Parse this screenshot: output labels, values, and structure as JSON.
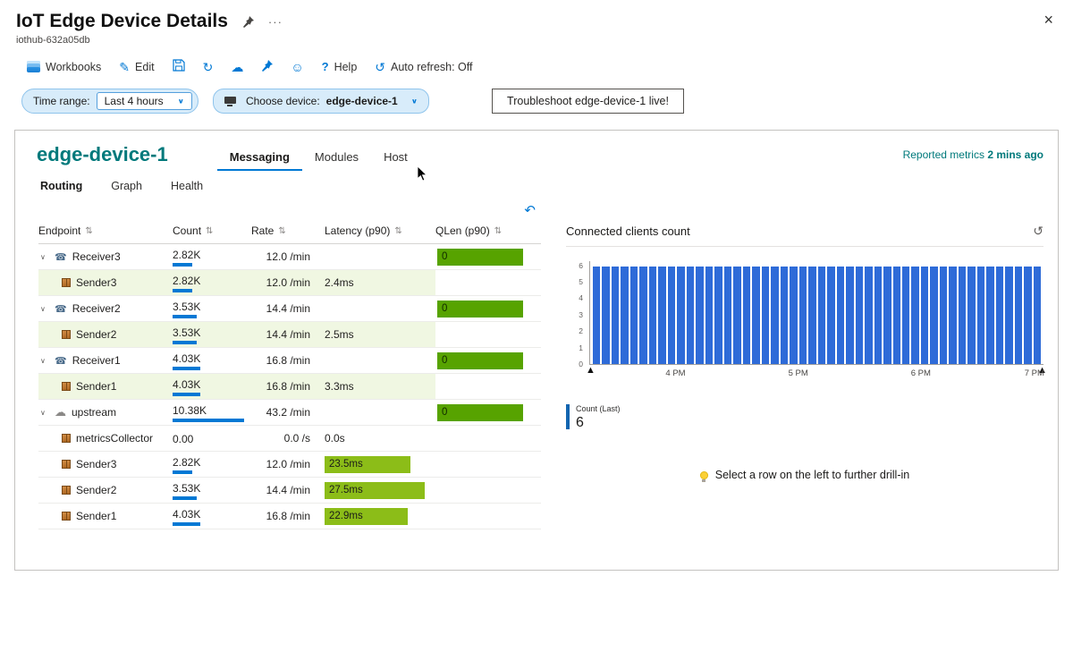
{
  "window": {
    "title": "IoT Edge Device Details",
    "subtitle": "iothub-632a05db"
  },
  "icons": {
    "close": "×",
    "more": "···",
    "sort": "⇅",
    "undo": "↶",
    "history": "↺",
    "refresh": "↻",
    "cloud_download": "☁",
    "smiley": "☺",
    "edit": "✎",
    "chevron_down": "∨",
    "expand": "∨",
    "receiver": "☎",
    "cloud": "☁",
    "brush_handle": "▲",
    "help": "?",
    "auto_refresh": "↺"
  },
  "toolbar": {
    "workbooks": "Workbooks",
    "edit": "Edit",
    "help": "Help",
    "auto_refresh": "Auto refresh: Off"
  },
  "filters": {
    "time_range_label": "Time range:",
    "time_range_value": "Last 4 hours",
    "device_label": "Choose device:",
    "device_value": "edge-device-1",
    "troubleshoot_label": "Troubleshoot edge-device-1 live!"
  },
  "device": {
    "name": "edge-device-1",
    "tabs": [
      "Messaging",
      "Modules",
      "Host"
    ],
    "active_tab": "Messaging",
    "subtabs": [
      "Routing",
      "Graph",
      "Health"
    ],
    "active_subtab": "Routing",
    "reported_label": "Reported metrics",
    "reported_value": "2 mins ago"
  },
  "table": {
    "columns": [
      "Endpoint",
      "Count",
      "Rate",
      "Latency (p90)",
      "QLen (p90)"
    ],
    "max_count": 10380,
    "max_latency_ms": 27.5,
    "rows": [
      {
        "name": "Receiver3",
        "icon": "receiver",
        "expanded": true,
        "indent": false,
        "count": "2.82K",
        "count_value": 2820,
        "rate": "12.0 /min",
        "latency": "",
        "latency_value": 0,
        "latency_bar": false,
        "qlen": "0",
        "tint": false
      },
      {
        "name": "Sender3",
        "icon": "package",
        "expanded": false,
        "indent": true,
        "count": "2.82K",
        "count_value": 2820,
        "rate": "12.0 /min",
        "latency": "2.4ms",
        "latency_value": 2.4,
        "latency_bar": false,
        "qlen": "",
        "tint": true
      },
      {
        "name": "Receiver2",
        "icon": "receiver",
        "expanded": true,
        "indent": false,
        "count": "3.53K",
        "count_value": 3530,
        "rate": "14.4 /min",
        "latency": "",
        "latency_value": 0,
        "latency_bar": false,
        "qlen": "0",
        "tint": false
      },
      {
        "name": "Sender2",
        "icon": "package",
        "expanded": false,
        "indent": true,
        "count": "3.53K",
        "count_value": 3530,
        "rate": "14.4 /min",
        "latency": "2.5ms",
        "latency_value": 2.5,
        "latency_bar": false,
        "qlen": "",
        "tint": true
      },
      {
        "name": "Receiver1",
        "icon": "receiver",
        "expanded": true,
        "indent": false,
        "count": "4.03K",
        "count_value": 4030,
        "rate": "16.8 /min",
        "latency": "",
        "latency_value": 0,
        "latency_bar": false,
        "qlen": "0",
        "tint": false
      },
      {
        "name": "Sender1",
        "icon": "package",
        "expanded": false,
        "indent": true,
        "count": "4.03K",
        "count_value": 4030,
        "rate": "16.8 /min",
        "latency": "3.3ms",
        "latency_value": 3.3,
        "latency_bar": false,
        "qlen": "",
        "tint": true
      },
      {
        "name": "upstream",
        "icon": "cloud",
        "expanded": true,
        "indent": false,
        "count": "10.38K",
        "count_value": 10380,
        "rate": "43.2 /min",
        "latency": "",
        "latency_value": 0,
        "latency_bar": false,
        "qlen": "0",
        "tint": false
      },
      {
        "name": "metricsCollector",
        "icon": "package",
        "expanded": false,
        "indent": true,
        "count": "0.00",
        "count_value": 0,
        "rate": "0.0 /s",
        "latency": "0.0s",
        "latency_value": 0,
        "latency_bar": false,
        "qlen": "",
        "tint": false
      },
      {
        "name": "Sender3",
        "icon": "package",
        "expanded": false,
        "indent": true,
        "count": "2.82K",
        "count_value": 2820,
        "rate": "12.0 /min",
        "latency": "23.5ms",
        "latency_value": 23.5,
        "latency_bar": true,
        "qlen": "",
        "tint": false
      },
      {
        "name": "Sender2",
        "icon": "package",
        "expanded": false,
        "indent": true,
        "count": "3.53K",
        "count_value": 3530,
        "rate": "14.4 /min",
        "latency": "27.5ms",
        "latency_value": 27.5,
        "latency_bar": true,
        "qlen": "",
        "tint": false
      },
      {
        "name": "Sender1",
        "icon": "package",
        "expanded": false,
        "indent": true,
        "count": "4.03K",
        "count_value": 4030,
        "rate": "16.8 /min",
        "latency": "22.9ms",
        "latency_value": 22.9,
        "latency_bar": true,
        "qlen": "",
        "tint": false
      }
    ]
  },
  "chart_data": {
    "type": "bar",
    "title": "Connected clients count",
    "values": [
      6,
      6,
      6,
      6,
      6,
      6,
      6,
      6,
      6,
      6,
      6,
      6,
      6,
      6,
      6,
      6,
      6,
      6,
      6,
      6,
      6,
      6,
      6,
      6,
      6,
      6,
      6,
      6,
      6,
      6,
      6,
      6,
      6,
      6,
      6,
      6,
      6,
      6,
      6,
      6,
      6,
      6,
      6,
      6,
      6,
      6,
      6,
      6
    ],
    "ylim": [
      0,
      6
    ],
    "y_ticks": [
      6,
      5,
      4,
      3,
      2,
      1,
      0
    ],
    "x_labels": [
      {
        "text": "4 PM",
        "pos": 19
      },
      {
        "text": "5 PM",
        "pos": 46
      },
      {
        "text": "6 PM",
        "pos": 73
      },
      {
        "text": "7 PM",
        "pos": 98
      }
    ],
    "grid": false,
    "legend_position": "bottom-left",
    "legend": {
      "label": "Count (Last)",
      "value": "6"
    }
  },
  "hint": {
    "text": "Select a row on the left to further drill-in"
  },
  "colors": {
    "accent": "#0078d4",
    "teal": "#00797b",
    "qlen_bar": "#57a300",
    "latency_bar": "#8cbd18",
    "row_tint": "#f0f7e2",
    "chart_bar": "#2e6bd8",
    "legend_bar": "#1265b0"
  }
}
